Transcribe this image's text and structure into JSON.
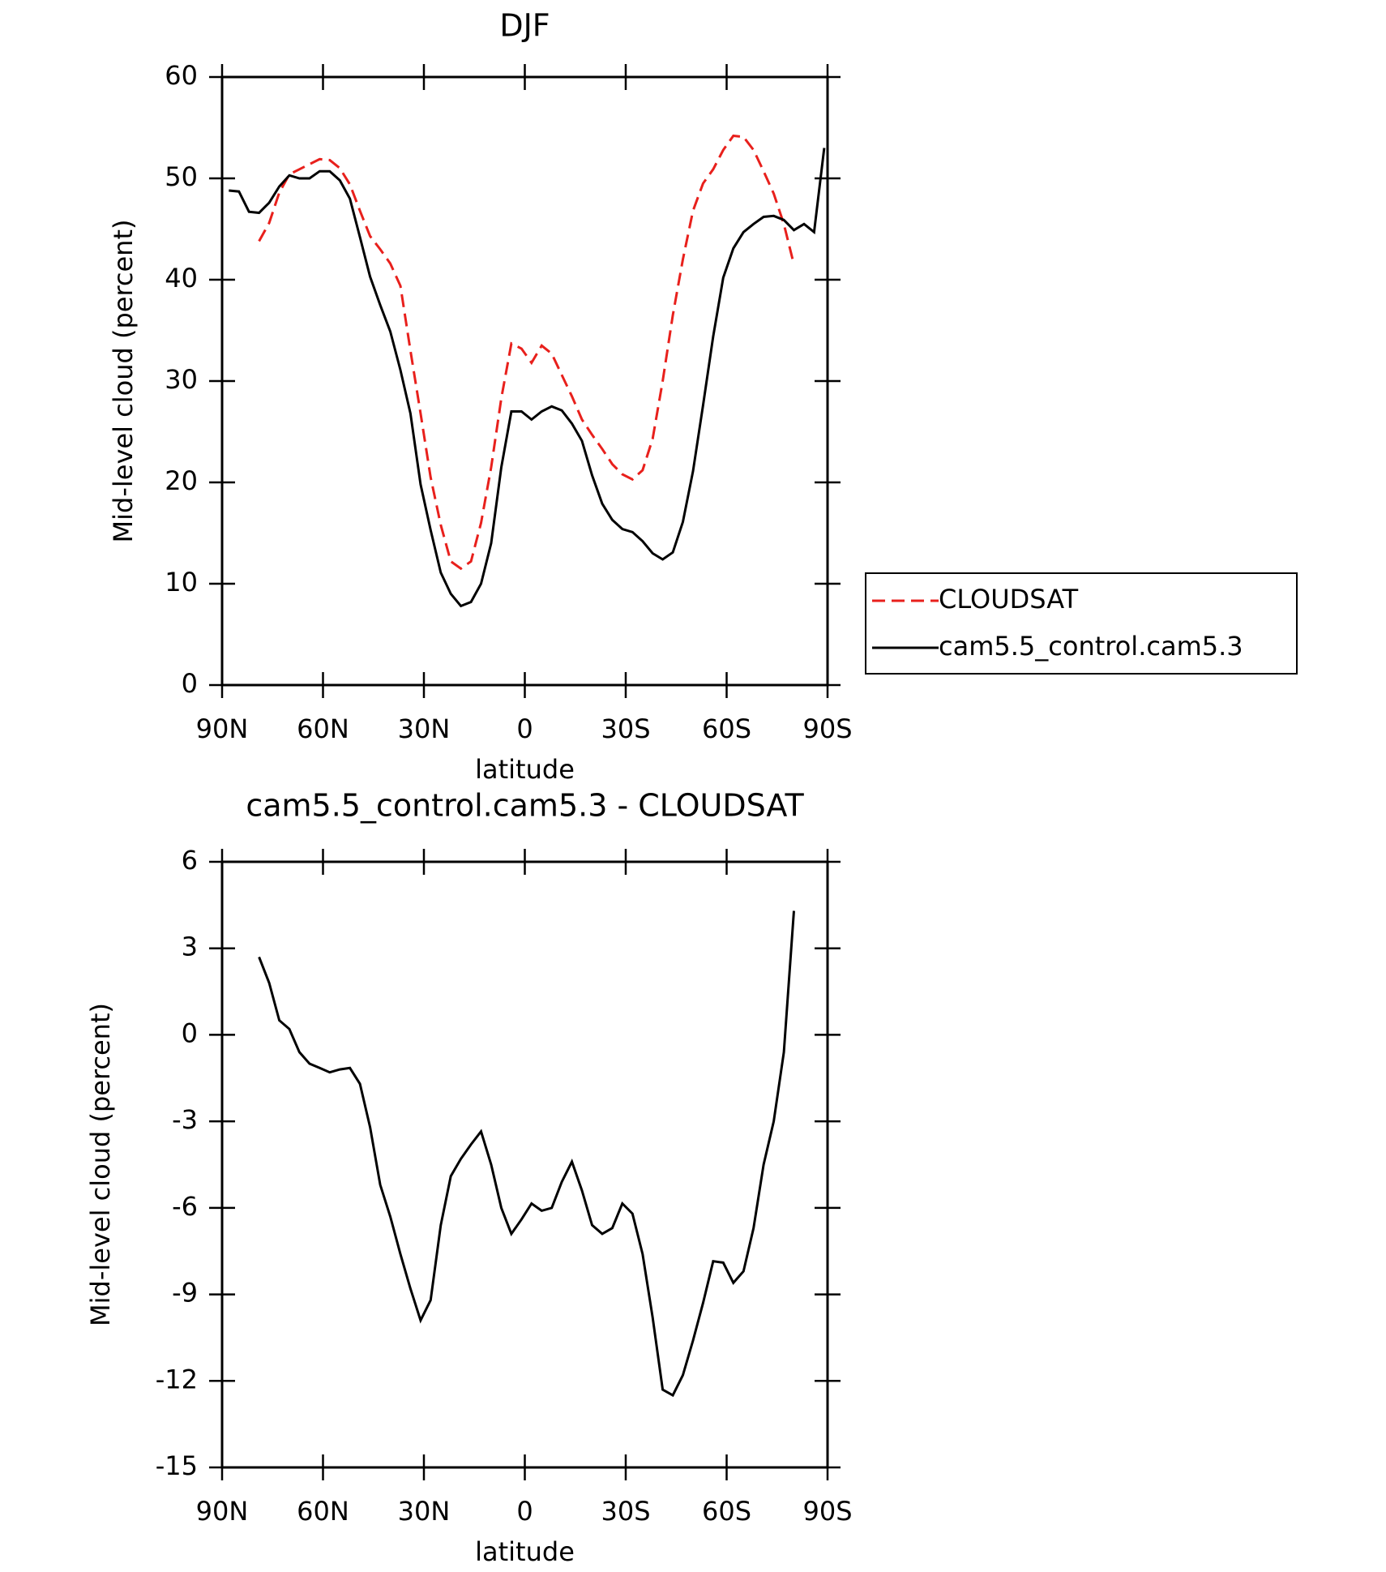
{
  "chart_data": [
    {
      "type": "line",
      "title": "DJF",
      "xlabel": "latitude",
      "ylabel": "Mid-level cloud (percent)",
      "x": [
        88,
        85,
        82,
        79,
        76,
        73,
        70,
        67,
        64,
        61,
        58,
        55,
        52,
        49,
        46,
        43,
        40,
        37,
        34,
        31,
        28,
        25,
        22,
        19,
        16,
        13,
        10,
        7,
        4,
        1,
        -2,
        -5,
        -8,
        -11,
        -14,
        -17,
        -20,
        -23,
        -26,
        -29,
        -32,
        -35,
        -38,
        -41,
        -44,
        -47,
        -50,
        -53,
        -56,
        -59,
        -62,
        -65,
        -68,
        -71,
        -74,
        -77,
        -80,
        -83,
        -86,
        -89
      ],
      "series": [
        {
          "name": "CLOUDSAT",
          "color": "#e8201c",
          "line_style": "dashed",
          "values": [
            null,
            null,
            null,
            43.8,
            45.6,
            48.6,
            50.4,
            50.9,
            51.4,
            51.9,
            51.8,
            51.0,
            49.4,
            46.8,
            44.3,
            43.0,
            41.6,
            39.4,
            33.0,
            26.8,
            20.5,
            15.8,
            12.2,
            11.5,
            12.2,
            16.0,
            21.5,
            28.3,
            33.7,
            33.2,
            31.8,
            33.5,
            32.7,
            30.6,
            28.5,
            26.2,
            24.7,
            23.3,
            21.8,
            20.8,
            20.3,
            21.2,
            24.3,
            30.0,
            36.5,
            42.0,
            46.8,
            49.5,
            50.9,
            52.8,
            54.2,
            54.1,
            52.8,
            50.7,
            48.5,
            45.5,
            41.5,
            null,
            null,
            null
          ]
        },
        {
          "name": "cam5.5_control.cam5.3",
          "color": "#000000",
          "line_style": "solid",
          "values": [
            48.8,
            48.7,
            46.7,
            46.6,
            47.6,
            49.2,
            50.3,
            50.0,
            50.0,
            50.7,
            50.7,
            49.8,
            48.0,
            44.2,
            40.3,
            37.5,
            34.9,
            31.1,
            26.8,
            19.8,
            15.3,
            11.1,
            9.0,
            7.8,
            8.2,
            10.0,
            14.0,
            21.5,
            27.0,
            27.0,
            26.2,
            27.0,
            27.5,
            27.1,
            25.8,
            24.1,
            20.7,
            17.9,
            16.3,
            15.4,
            15.1,
            14.2,
            13.0,
            12.4,
            13.1,
            16.1,
            21.1,
            27.6,
            34.4,
            40.2,
            43.1,
            44.7,
            45.5,
            46.2,
            46.3,
            45.9,
            44.9,
            45.5,
            44.7,
            53.0
          ]
        }
      ],
      "xlim": [
        90,
        -90
      ],
      "xticks": [
        {
          "value": 90,
          "label": "90N"
        },
        {
          "value": 60,
          "label": "60N"
        },
        {
          "value": 30,
          "label": "30N"
        },
        0,
        {
          "value": -30,
          "label": "30S"
        },
        {
          "value": -60,
          "label": "60S"
        },
        {
          "value": -90,
          "label": "90S"
        }
      ],
      "ylim": [
        0,
        60
      ],
      "yticks": [
        0,
        10,
        20,
        30,
        40,
        50,
        60
      ],
      "legend": "right"
    },
    {
      "type": "line",
      "title": "cam5.5_control.cam5.3 - CLOUDSAT",
      "xlabel": "latitude",
      "ylabel": "Mid-level cloud (percent)",
      "x": [
        88,
        85,
        82,
        79,
        76,
        73,
        70,
        67,
        64,
        61,
        58,
        55,
        52,
        49,
        46,
        43,
        40,
        37,
        34,
        31,
        28,
        25,
        22,
        19,
        16,
        13,
        10,
        7,
        4,
        1,
        -2,
        -5,
        -8,
        -11,
        -14,
        -17,
        -20,
        -23,
        -26,
        -29,
        -32,
        -35,
        -38,
        -41,
        -44,
        -47,
        -50,
        -53,
        -56,
        -59,
        -62,
        -65,
        -68,
        -71,
        -74,
        -77,
        -80,
        -83,
        -86,
        -89
      ],
      "series": [
        {
          "color": "#000000",
          "line_style": "solid",
          "values": [
            null,
            null,
            null,
            2.7,
            1.8,
            0.5,
            0.2,
            -0.6,
            -1.0,
            -1.15,
            -1.3,
            -1.2,
            -1.15,
            -1.7,
            -3.2,
            -5.2,
            -6.3,
            -7.6,
            -8.8,
            -9.9,
            -9.2,
            -6.6,
            -4.9,
            -4.3,
            -3.8,
            -3.35,
            -4.5,
            -6.0,
            -6.9,
            -6.4,
            -5.85,
            -6.1,
            -6.0,
            -5.1,
            -4.4,
            -5.4,
            -6.6,
            -6.9,
            -6.7,
            -5.85,
            -6.2,
            -7.6,
            -9.8,
            -12.3,
            -12.5,
            -11.8,
            -10.6,
            -9.3,
            -7.85,
            -7.9,
            -8.6,
            -8.2,
            -6.7,
            -4.5,
            -3.0,
            -0.6,
            4.3,
            null,
            null,
            null
          ]
        }
      ],
      "xlim": [
        90,
        -90
      ],
      "xticks": [
        {
          "value": 90,
          "label": "90N"
        },
        {
          "value": 60,
          "label": "60N"
        },
        {
          "value": 30,
          "label": "30N"
        },
        0,
        {
          "value": -30,
          "label": "30S"
        },
        {
          "value": -60,
          "label": "60S"
        },
        {
          "value": -90,
          "label": "90S"
        }
      ],
      "ylim": [
        -15,
        6
      ],
      "yticks": [
        -15,
        -12,
        -9,
        -6,
        -3,
        0,
        3,
        6
      ]
    }
  ]
}
